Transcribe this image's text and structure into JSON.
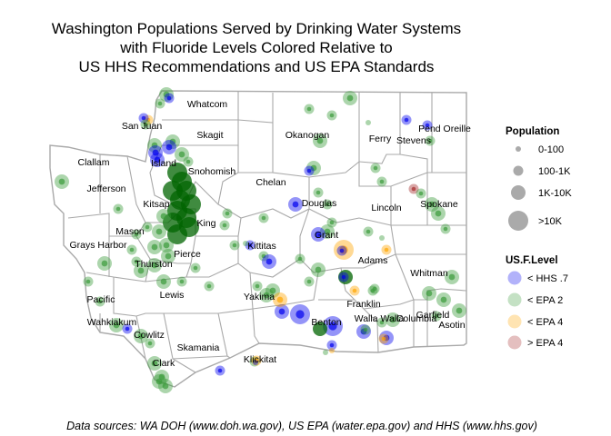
{
  "title_lines": [
    "Washington Populations Served by Drinking Water Systems",
    "with Fluoride Levels Colored Relative to",
    "US HHS Recommendations and US EPA Standards"
  ],
  "caption": "Data sources: WA DOH (www.doh.wa.gov), US EPA (water.epa.gov) and HHS (www.hhs.gov)",
  "county_labels": [
    "Whatcom",
    "San Juan",
    "Skagit",
    "Okanogan",
    "Ferry",
    "Stevens",
    "Pend Oreille",
    "Clallam",
    "Island",
    "Snohomish",
    "Jefferson",
    "Chelan",
    "Douglas",
    "Lincoln",
    "Spokane",
    "Kitsap",
    "King",
    "Mason",
    "Grant",
    "Grays Harbor",
    "Kittitas",
    "Pierce",
    "Adams",
    "Thurston",
    "Whitman",
    "Lewis",
    "Pacific",
    "Yakima",
    "Franklin",
    "Garfield",
    "Benton",
    "Walla Walla",
    "Columbia",
    "Asotin",
    "Wahkiakum",
    "Cowlitz",
    "Skamania",
    "Clark",
    "Klickitat"
  ],
  "legend": {
    "population_title": "Population",
    "population_items": [
      {
        "label": "0-100",
        "size_class": 1
      },
      {
        "label": "100-1K",
        "size_class": 2
      },
      {
        "label": "1K-10K",
        "size_class": 3
      },
      {
        "label": ">10K",
        "size_class": 4
      }
    ],
    "fluoride_title": "US.F.Level",
    "fluoride_items": [
      {
        "label": "< HHS .7",
        "color": "#0000ee"
      },
      {
        "label": "< EPA 2",
        "color": "#3a9a3a"
      },
      {
        "label": "< EPA 4",
        "color": "#ffa500"
      },
      {
        "label": "> EPA 4",
        "color": "#a52a2a"
      }
    ]
  },
  "colors": {
    "county_border": "#a9a9a9",
    "hhs": "#0000ee",
    "epa2": "#3a9a3a",
    "epa2_dense": "#006400",
    "epa4": "#ffa500",
    "over_epa4": "#a52a2a"
  }
}
